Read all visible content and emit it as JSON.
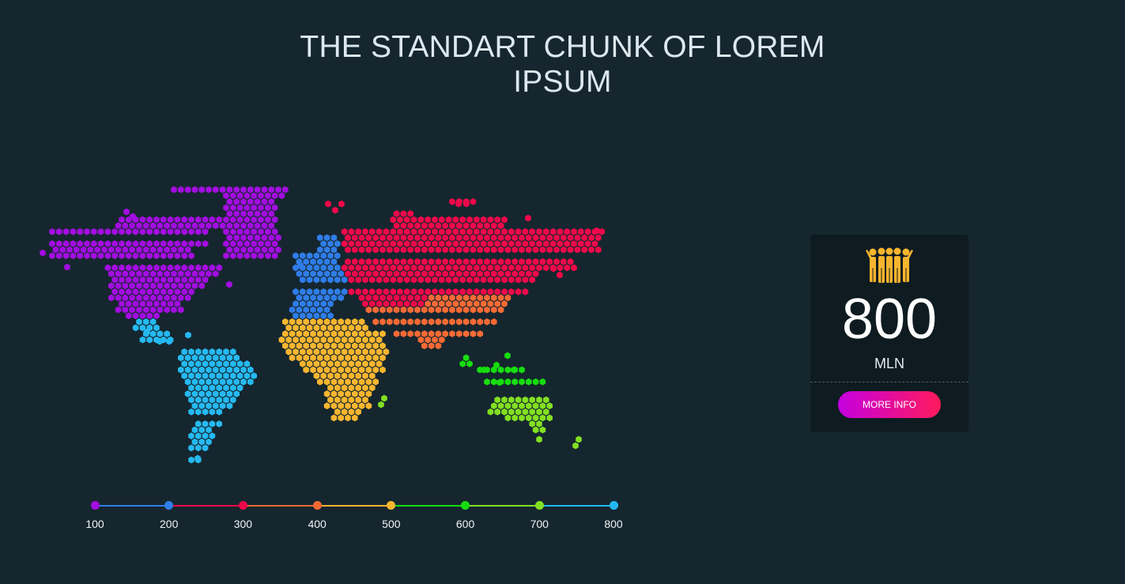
{
  "header": {
    "title": "THE STANDART CHUNK OF LOREM IPSUM"
  },
  "map": {
    "regions": [
      {
        "id": "north-america",
        "color": "#a20ee0"
      },
      {
        "id": "europe",
        "color": "#2f7de8"
      },
      {
        "id": "russia-asia",
        "color": "#f0094a"
      },
      {
        "id": "south-asia",
        "color": "#f76a35"
      },
      {
        "id": "africa",
        "color": "#f8b62f"
      },
      {
        "id": "southeast-asia",
        "color": "#17dd0f"
      },
      {
        "id": "australia",
        "color": "#82e021"
      },
      {
        "id": "south-america",
        "color": "#25b9f1"
      }
    ]
  },
  "timeline": {
    "points": [
      {
        "label": "100",
        "color": "#a20ee0"
      },
      {
        "label": "200",
        "color": "#2f7de8"
      },
      {
        "label": "300",
        "color": "#f0094a"
      },
      {
        "label": "400",
        "color": "#f76a35"
      },
      {
        "label": "500",
        "color": "#f8b62f"
      },
      {
        "label": "600",
        "color": "#17dd0f"
      },
      {
        "label": "700",
        "color": "#82e021"
      },
      {
        "label": "800",
        "color": "#25b9f1"
      }
    ]
  },
  "stat_card": {
    "icon": "people-group-icon",
    "value": "800",
    "unit": "MLN",
    "button_label": "MORE INFO",
    "icon_color": "#f9b52d"
  }
}
